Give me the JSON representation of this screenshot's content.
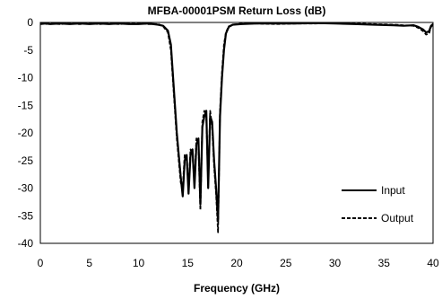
{
  "chart_data": {
    "type": "line",
    "title": "MFBA-00001PSM Return Loss (dB)",
    "xlabel": "Frequency  (GHz)",
    "ylabel": "",
    "xlim": [
      0,
      40
    ],
    "ylim": [
      -40,
      0
    ],
    "xticks": [
      0,
      5,
      10,
      15,
      20,
      25,
      30,
      35,
      40
    ],
    "yticks": [
      0,
      -5,
      -10,
      -15,
      -20,
      -25,
      -30,
      -35,
      -40
    ],
    "grid": false,
    "legend_position": "bottom-right",
    "series": [
      {
        "name": "Input",
        "style": "solid",
        "color": "#000000",
        "points": [
          [
            0,
            -0.3
          ],
          [
            0.5,
            -0.2
          ],
          [
            1,
            -0.3
          ],
          [
            2,
            -0.2
          ],
          [
            3,
            -0.3
          ],
          [
            4,
            -0.2
          ],
          [
            5,
            -0.3
          ],
          [
            6,
            -0.2
          ],
          [
            7,
            -0.3
          ],
          [
            8,
            -0.2
          ],
          [
            9,
            -0.3
          ],
          [
            10,
            -0.3
          ],
          [
            11,
            -0.2
          ],
          [
            12,
            -0.4
          ],
          [
            12.5,
            -0.6
          ],
          [
            13,
            -1.5
          ],
          [
            13.3,
            -4
          ],
          [
            13.6,
            -12
          ],
          [
            13.9,
            -20
          ],
          [
            14.1,
            -24
          ],
          [
            14.3,
            -28
          ],
          [
            14.5,
            -31.5
          ],
          [
            14.7,
            -25
          ],
          [
            14.9,
            -24
          ],
          [
            15.1,
            -31
          ],
          [
            15.3,
            -24
          ],
          [
            15.5,
            -23
          ],
          [
            15.7,
            -30
          ],
          [
            15.9,
            -22
          ],
          [
            16.1,
            -21
          ],
          [
            16.3,
            -33
          ],
          [
            16.5,
            -19
          ],
          [
            16.7,
            -17
          ],
          [
            16.9,
            -16
          ],
          [
            17.1,
            -30
          ],
          [
            17.3,
            -17
          ],
          [
            17.5,
            -18
          ],
          [
            17.7,
            -25
          ],
          [
            17.9,
            -30
          ],
          [
            18.1,
            -36
          ],
          [
            18.3,
            -17
          ],
          [
            18.5,
            -10
          ],
          [
            18.7,
            -5
          ],
          [
            18.9,
            -2
          ],
          [
            19.2,
            -0.8
          ],
          [
            19.6,
            -0.4
          ],
          [
            20.5,
            -0.3
          ],
          [
            22,
            -0.2
          ],
          [
            24,
            -0.2
          ],
          [
            26,
            -0.2
          ],
          [
            28,
            -0.1
          ],
          [
            30,
            -0.2
          ],
          [
            32,
            -0.3
          ],
          [
            34,
            -0.4
          ],
          [
            36,
            -0.5
          ],
          [
            37,
            -0.6
          ],
          [
            38,
            -0.5
          ],
          [
            38.5,
            -0.8
          ],
          [
            39,
            -1.3
          ],
          [
            39.3,
            -1.8
          ],
          [
            39.6,
            -1.6
          ],
          [
            39.8,
            -0.6
          ],
          [
            40,
            -0.3
          ]
        ]
      },
      {
        "name": "Output",
        "style": "dashed",
        "color": "#000000",
        "points": [
          [
            0,
            -0.2
          ],
          [
            0.5,
            -0.3
          ],
          [
            1,
            -0.2
          ],
          [
            2,
            -0.3
          ],
          [
            3,
            -0.2
          ],
          [
            4,
            -0.3
          ],
          [
            5,
            -0.2
          ],
          [
            6,
            -0.3
          ],
          [
            7,
            -0.2
          ],
          [
            8,
            -0.3
          ],
          [
            9,
            -0.2
          ],
          [
            10,
            -0.2
          ],
          [
            11,
            -0.3
          ],
          [
            12,
            -0.3
          ],
          [
            12.5,
            -0.7
          ],
          [
            13,
            -1.8
          ],
          [
            13.3,
            -5
          ],
          [
            13.6,
            -13
          ],
          [
            13.9,
            -21
          ],
          [
            14.1,
            -25
          ],
          [
            14.3,
            -29
          ],
          [
            14.5,
            -30
          ],
          [
            14.7,
            -24
          ],
          [
            14.9,
            -25
          ],
          [
            15.1,
            -30
          ],
          [
            15.3,
            -23
          ],
          [
            15.5,
            -24
          ],
          [
            15.7,
            -29
          ],
          [
            15.9,
            -21
          ],
          [
            16.1,
            -22
          ],
          [
            16.3,
            -34
          ],
          [
            16.5,
            -18
          ],
          [
            16.7,
            -16
          ],
          [
            16.9,
            -17
          ],
          [
            17.1,
            -29
          ],
          [
            17.3,
            -16
          ],
          [
            17.5,
            -19
          ],
          [
            17.7,
            -26
          ],
          [
            17.9,
            -31
          ],
          [
            18.1,
            -38
          ],
          [
            18.3,
            -16
          ],
          [
            18.5,
            -9
          ],
          [
            18.7,
            -4
          ],
          [
            18.9,
            -1.8
          ],
          [
            19.2,
            -0.7
          ],
          [
            19.6,
            -0.4
          ],
          [
            20.5,
            -0.2
          ],
          [
            22,
            -0.2
          ],
          [
            24,
            -0.3
          ],
          [
            26,
            -0.2
          ],
          [
            28,
            -0.2
          ],
          [
            30,
            -0.1
          ],
          [
            32,
            -0.2
          ],
          [
            34,
            -0.3
          ],
          [
            36,
            -0.4
          ],
          [
            37,
            -0.5
          ],
          [
            38,
            -0.6
          ],
          [
            38.5,
            -1
          ],
          [
            39,
            -1.6
          ],
          [
            39.3,
            -2.2
          ],
          [
            39.6,
            -2.0
          ],
          [
            39.8,
            -0.8
          ],
          [
            40,
            -0.4
          ]
        ]
      }
    ]
  }
}
